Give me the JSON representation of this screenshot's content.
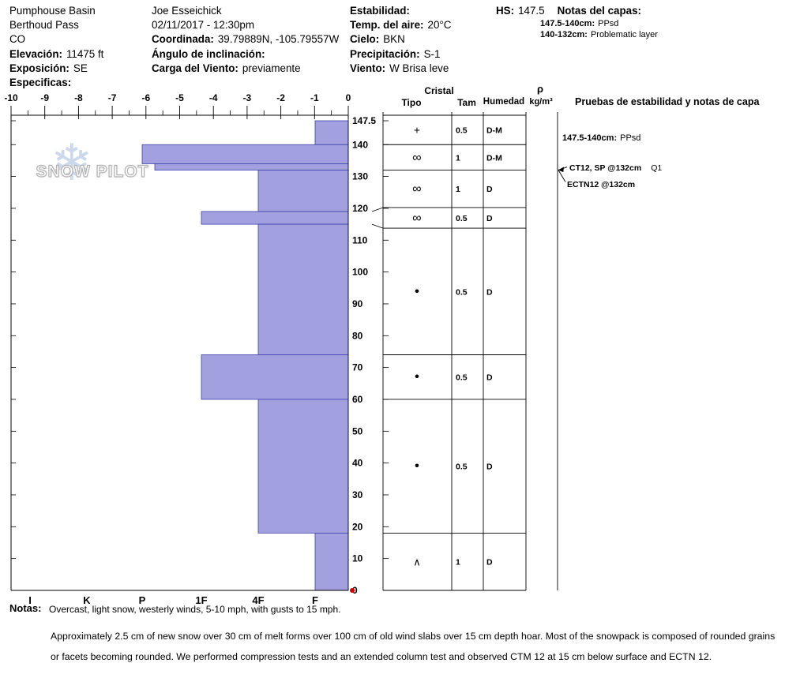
{
  "colors": {
    "bar_fill": "#a2a0de",
    "bar_stroke": "#4040b0",
    "line": "#000000",
    "red_dot": "#cc0000",
    "watermark_flake": "#ccd9ec"
  },
  "header": {
    "location": {
      "line1": "Pumphouse Basin",
      "line2": "Berthoud Pass",
      "line3": "CO",
      "elevation_label": "Elevación:",
      "elevation_value": "11475 ft",
      "aspect_label": "Exposición:",
      "aspect_value": "SE",
      "specifics_label": "Especificas:"
    },
    "observer": {
      "name": "Joe Esseichick",
      "datetime": "02/11/2017 - 12:30pm",
      "coords_label": "Coordinada:",
      "coords_value": "39.79889N, -105.79557W",
      "incline_label": "Ángulo de inclinación:",
      "windload_label": "Carga del Viento:",
      "windload_value": "previamente"
    },
    "conditions": {
      "stability_label": "Estabilidad:",
      "airtemp_label": "Temp. del aire:",
      "airtemp_value": "20°C",
      "sky_label": "Cielo:",
      "sky_value": "BKN",
      "precip_label": "Precipitación:",
      "precip_value": "S-1",
      "wind_label": "Viento:",
      "wind_value": "W Brisa leve"
    },
    "snow_height": {
      "label": "HS:",
      "value": "147.5"
    },
    "layer_notes": {
      "label": "Notas del capas:",
      "items": [
        {
          "range": "147.5-140cm:",
          "text": "PPsd"
        },
        {
          "range": "140-132cm:",
          "text": "Problematic layer"
        }
      ]
    }
  },
  "table_headers": {
    "cristal": "Cristal",
    "tipo": "Tipo",
    "tam": "Tam",
    "humedad": "Humedad",
    "rho": "ρ",
    "rho_unit": "kg/m³",
    "stability": "Pruebas de estabilidad y notas de capa"
  },
  "stability_notes": {
    "surface_note_range": "147.5-140cm:",
    "surface_note_text": "PPsd",
    "test1": "CT12, SP @132cm",
    "test1_score": "Q1",
    "test2": "ECTN12 @132cm"
  },
  "watermark": {
    "snow": "SNOW",
    "pilot": "PILOT",
    "flake": "❄"
  },
  "footer": {
    "notes_label": "Notas:",
    "notes_text": "Overcast, light snow, westerly winds, 5-10 mph, with gusts to 15 mph.",
    "paragraph_line1": "Approximately 2.5 cm of new snow over 30 cm of melt forms over 100 cm of old wind slabs over 15 cm depth hoar.  Most of the snowpack is composed of rounded grains",
    "paragraph_line2": "or facets becoming rounded.  We performed compression tests and an extended column test and observed CTM 12 at 15 cm below surface and ECTN 12."
  },
  "chart_data": {
    "type": "bar",
    "subtype": "snow-hardness-profile",
    "title": "Snow pit hardness profile",
    "hs_cm": 147.5,
    "top_axis_ticks": [
      -10,
      -9,
      -8,
      -7,
      -6,
      -5,
      -4,
      -3,
      -2,
      -1,
      0
    ],
    "hardness_labels": [
      "I",
      "K",
      "P",
      "1F",
      "4F",
      "F"
    ],
    "depth_ticks_cm": [
      147.5,
      140,
      130,
      120,
      110,
      100,
      90,
      80,
      70,
      60,
      50,
      40,
      30,
      20,
      10,
      0
    ],
    "layers": [
      {
        "top_cm": 147.5,
        "bottom_cm": 140,
        "hardness": "F"
      },
      {
        "top_cm": 140,
        "bottom_cm": 134,
        "hardness": "P"
      },
      {
        "top_cm": 134,
        "bottom_cm": 132,
        "hardness": "P-"
      },
      {
        "top_cm": 132,
        "bottom_cm": 119,
        "hardness": "4F"
      },
      {
        "top_cm": 119,
        "bottom_cm": 115,
        "hardness": "1F"
      },
      {
        "top_cm": 115,
        "bottom_cm": 74,
        "hardness": "4F"
      },
      {
        "top_cm": 74,
        "bottom_cm": 60,
        "hardness": "1F"
      },
      {
        "top_cm": 60,
        "bottom_cm": 18,
        "hardness": "4F"
      },
      {
        "top_cm": 18,
        "bottom_cm": 0,
        "hardness": "F"
      }
    ],
    "grain_rows": [
      {
        "top_cm": 147.5,
        "bottom_cm": 140,
        "symbol": "+",
        "type": "PP",
        "size_mm": "0.5",
        "moisture": "D-M"
      },
      {
        "top_cm": 140,
        "bottom_cm": 132,
        "symbol": "∞",
        "type": "MF",
        "size_mm": "1",
        "moisture": "D-M"
      },
      {
        "top_cm": 132,
        "bottom_cm": 119,
        "symbol": "∞",
        "type": "MF",
        "size_mm": "1",
        "moisture": "D"
      },
      {
        "top_cm": 119,
        "bottom_cm": 115,
        "symbol": "∞",
        "type": "MF",
        "size_mm": "0.5",
        "moisture": "D"
      },
      {
        "top_cm": 115,
        "bottom_cm": 74,
        "symbol": "•",
        "type": "RG",
        "size_mm": "0.5",
        "moisture": "D"
      },
      {
        "top_cm": 74,
        "bottom_cm": 60,
        "symbol": "•",
        "type": "RG",
        "size_mm": "0.5",
        "moisture": "D"
      },
      {
        "top_cm": 60,
        "bottom_cm": 18,
        "symbol": "•",
        "type": "RG",
        "size_mm": "0.5",
        "moisture": "D"
      },
      {
        "top_cm": 18,
        "bottom_cm": 0,
        "symbol": "∧",
        "type": "DH",
        "size_mm": "1",
        "moisture": "D"
      }
    ]
  }
}
